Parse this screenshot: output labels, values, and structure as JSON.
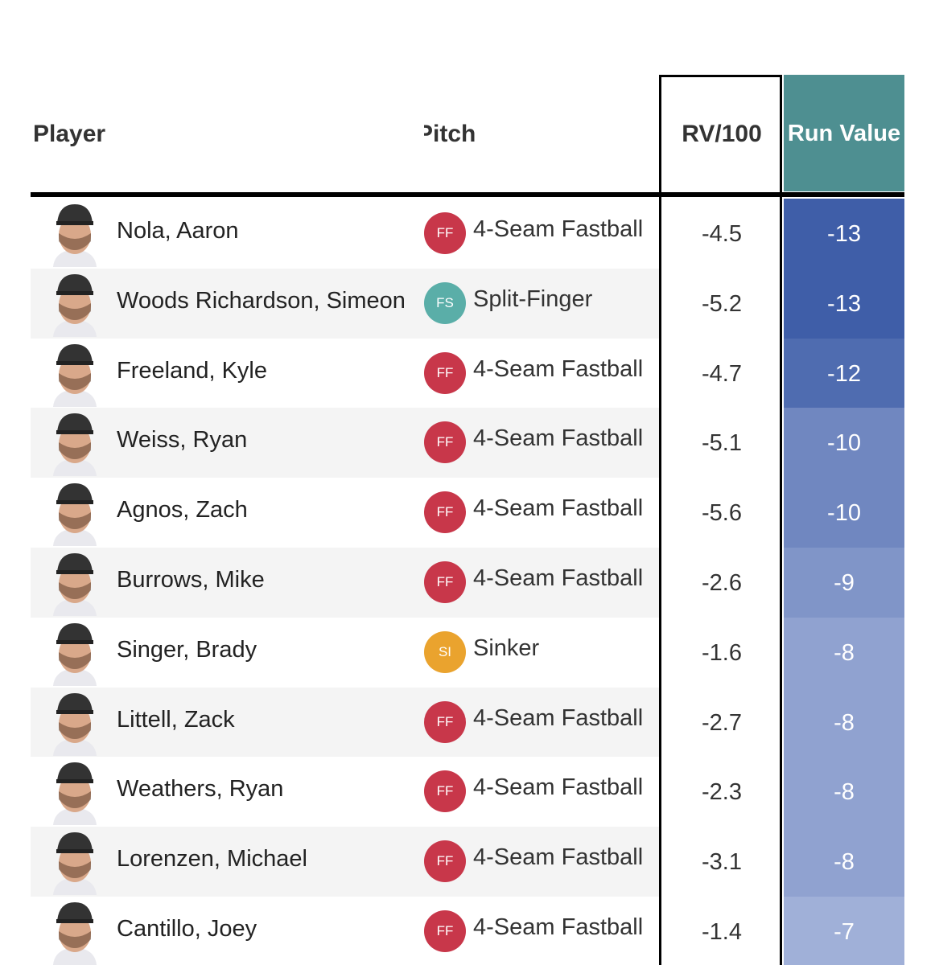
{
  "header": {
    "player": "Player",
    "pitch": "Pitch",
    "rv100": "RV/100",
    "run_value": "Run Value"
  },
  "table": {
    "rows": [
      {
        "player": "Nola, Aaron",
        "pitch_code": "FF",
        "pitch": "4-Seam Fastball",
        "pitch_color": "#c8374a",
        "rv100": -4.5,
        "run_value": -13
      },
      {
        "player": "Woods Richardson, Simeon",
        "pitch_code": "FS",
        "pitch": "Split-Finger",
        "pitch_color": "#5aaea8",
        "rv100": -5.2,
        "run_value": -13
      },
      {
        "player": "Freeland, Kyle",
        "pitch_code": "FF",
        "pitch": "4-Seam Fastball",
        "pitch_color": "#c8374a",
        "rv100": -4.7,
        "run_value": -12
      },
      {
        "player": "Weiss, Ryan",
        "pitch_code": "FF",
        "pitch": "4-Seam Fastball",
        "pitch_color": "#c8374a",
        "rv100": -5.1,
        "run_value": -10
      },
      {
        "player": "Agnos, Zach",
        "pitch_code": "FF",
        "pitch": "4-Seam Fastball",
        "pitch_color": "#c8374a",
        "rv100": -5.6,
        "run_value": -10
      },
      {
        "player": "Burrows, Mike",
        "pitch_code": "FF",
        "pitch": "4-Seam Fastball",
        "pitch_color": "#c8374a",
        "rv100": -2.6,
        "run_value": -9
      },
      {
        "player": "Singer, Brady",
        "pitch_code": "SI",
        "pitch": "Sinker",
        "pitch_color": "#eaa32e",
        "rv100": -1.6,
        "run_value": -8
      },
      {
        "player": "Littell, Zack",
        "pitch_code": "FF",
        "pitch": "4-Seam Fastball",
        "pitch_color": "#c8374a",
        "rv100": -2.7,
        "run_value": -8
      },
      {
        "player": "Weathers, Ryan",
        "pitch_code": "FF",
        "pitch": "4-Seam Fastball",
        "pitch_color": "#c8374a",
        "rv100": -2.3,
        "run_value": -8
      },
      {
        "player": "Lorenzen, Michael",
        "pitch_code": "FF",
        "pitch": "4-Seam Fastball",
        "pitch_color": "#c8374a",
        "rv100": -3.1,
        "run_value": -8
      },
      {
        "player": "Cantillo, Joey",
        "pitch_code": "FF",
        "pitch": "4-Seam Fastball",
        "pitch_color": "#c8374a",
        "rv100": -1.4,
        "run_value": -7
      }
    ]
  }
}
